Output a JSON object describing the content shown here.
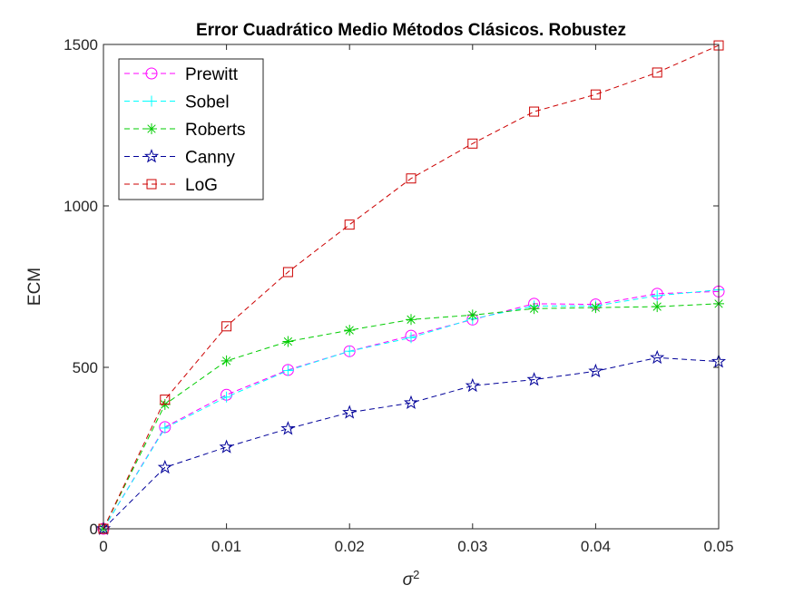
{
  "chart_data": {
    "type": "line",
    "title": "Error Cuadrático Medio Métodos Clásicos. Robustez",
    "xlabel": "σ",
    "xlabel_superscript": "2",
    "ylabel": "ECM",
    "xlim": [
      0,
      0.05
    ],
    "ylim": [
      0,
      1500
    ],
    "x_ticks": [
      0,
      0.01,
      0.02,
      0.03,
      0.04,
      0.05
    ],
    "x_tick_labels": [
      "0",
      "0.01",
      "0.02",
      "0.03",
      "0.04",
      "0.05"
    ],
    "y_ticks": [
      0,
      500,
      1000,
      1500
    ],
    "y_tick_labels": [
      "0",
      "500",
      "1000",
      "1500"
    ],
    "grid": false,
    "legend_position": "top-left",
    "x": [
      0,
      0.005,
      0.01,
      0.015,
      0.02,
      0.025,
      0.03,
      0.035,
      0.04,
      0.045,
      0.05
    ],
    "series": [
      {
        "name": "Prewitt",
        "color": "#ff00ff",
        "marker": "circle",
        "values": [
          0,
          315,
          415,
          492,
          550,
          598,
          648,
          697,
          695,
          728,
          735
        ]
      },
      {
        "name": "Sobel",
        "color": "#00ffff",
        "marker": "plus",
        "values": [
          0,
          312,
          408,
          490,
          550,
          592,
          650,
          690,
          690,
          722,
          740
        ]
      },
      {
        "name": "Roberts",
        "color": "#00cc00",
        "marker": "asterisk",
        "values": [
          0,
          385,
          520,
          580,
          615,
          648,
          662,
          682,
          685,
          688,
          697
        ]
      },
      {
        "name": "Canny",
        "color": "#000099",
        "marker": "star",
        "values": [
          0,
          190,
          253,
          310,
          360,
          390,
          443,
          462,
          488,
          530,
          518
        ]
      },
      {
        "name": "LoG",
        "color": "#cc0000",
        "marker": "square",
        "values": [
          0,
          400,
          627,
          795,
          942,
          1085,
          1193,
          1292,
          1345,
          1413,
          1497
        ]
      }
    ]
  }
}
